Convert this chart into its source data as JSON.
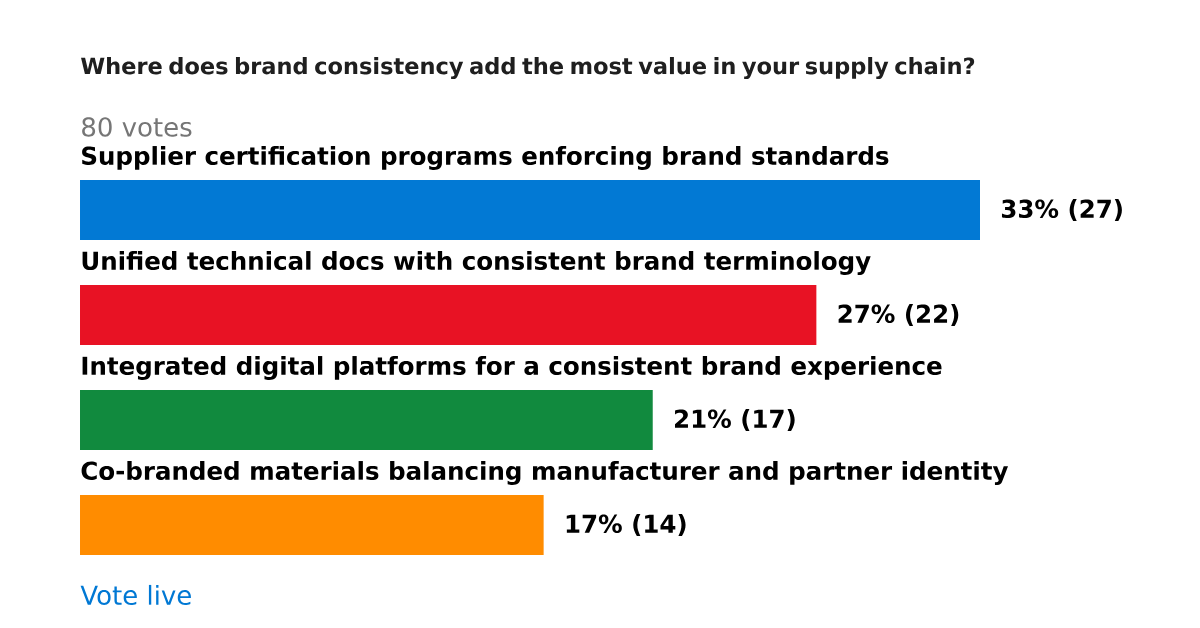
{
  "chart_data": {
    "type": "bar",
    "orientation": "horizontal",
    "title": "Where does brand consistency add the most value in your supply chain?",
    "subtitle": "80 votes",
    "categories": [
      "Supplier certification programs enforcing brand standards",
      "Unified technical docs with consistent brand terminology",
      "Integrated digital platforms for a consistent brand experience",
      "Co-branded materials balancing manufacturer and partner identity"
    ],
    "values": [
      33,
      27,
      21,
      17
    ],
    "value_labels": [
      "33% (27)",
      "27% (22)",
      "21% (17)",
      "17% (14)"
    ],
    "colors": [
      "#0279d4",
      "#e81224",
      "#118a3e",
      "#ff8c00"
    ],
    "annotations": [
      "Vote live"
    ]
  }
}
